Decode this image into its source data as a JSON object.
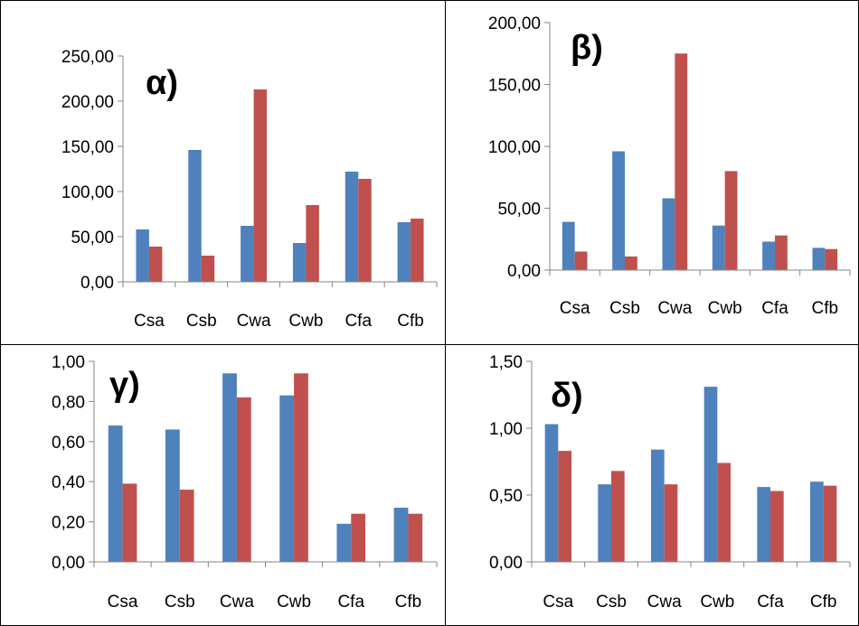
{
  "colors": {
    "series_1": "#4F81BD",
    "series_2": "#C0504D",
    "axis": "#868686"
  },
  "chart_data": [
    {
      "type": "bar",
      "panel_label": "α)",
      "categories": [
        "Csa",
        "Csb",
        "Cwa",
        "Cwb",
        "Cfa",
        "Cfb"
      ],
      "series": [
        {
          "values": [
            58,
            146,
            62,
            43,
            122,
            66
          ]
        },
        {
          "values": [
            39,
            29,
            213,
            85,
            114,
            70
          ]
        }
      ],
      "ylim": [
        0,
        250
      ],
      "yticks": [
        "0,00",
        "50,00",
        "100,00",
        "150,00",
        "200,00",
        "250,00"
      ],
      "grid": false
    },
    {
      "type": "bar",
      "panel_label": "β)",
      "categories": [
        "Csa",
        "Csb",
        "Cwa",
        "Cwb",
        "Cfa",
        "Cfb"
      ],
      "series": [
        {
          "values": [
            39,
            96,
            58,
            36,
            23,
            18
          ]
        },
        {
          "values": [
            15,
            11,
            175,
            80,
            28,
            17
          ]
        }
      ],
      "ylim": [
        0,
        200
      ],
      "yticks": [
        "0,00",
        "50,00",
        "100,00",
        "150,00",
        "200,00"
      ],
      "grid": false
    },
    {
      "type": "bar",
      "panel_label": "γ)",
      "categories": [
        "Csa",
        "Csb",
        "Cwa",
        "Cwb",
        "Cfa",
        "Cfb"
      ],
      "series": [
        {
          "values": [
            0.68,
            0.66,
            0.94,
            0.83,
            0.19,
            0.27
          ]
        },
        {
          "values": [
            0.39,
            0.36,
            0.82,
            0.94,
            0.24,
            0.24
          ]
        }
      ],
      "ylim": [
        0,
        1
      ],
      "yticks": [
        "0,00",
        "0,20",
        "0,40",
        "0,60",
        "0,80",
        "1,00"
      ],
      "grid": false
    },
    {
      "type": "bar",
      "panel_label": "δ)",
      "categories": [
        "Csa",
        "Csb",
        "Cwa",
        "Cwb",
        "Cfa",
        "Cfb"
      ],
      "series": [
        {
          "values": [
            1.03,
            0.58,
            0.84,
            1.31,
            0.56,
            0.6
          ]
        },
        {
          "values": [
            0.83,
            0.68,
            0.58,
            0.74,
            0.53,
            0.57
          ]
        }
      ],
      "ylim": [
        0,
        1.5
      ],
      "yticks": [
        "0,00",
        "0,50",
        "1,00",
        "1,50"
      ],
      "grid": false
    }
  ]
}
